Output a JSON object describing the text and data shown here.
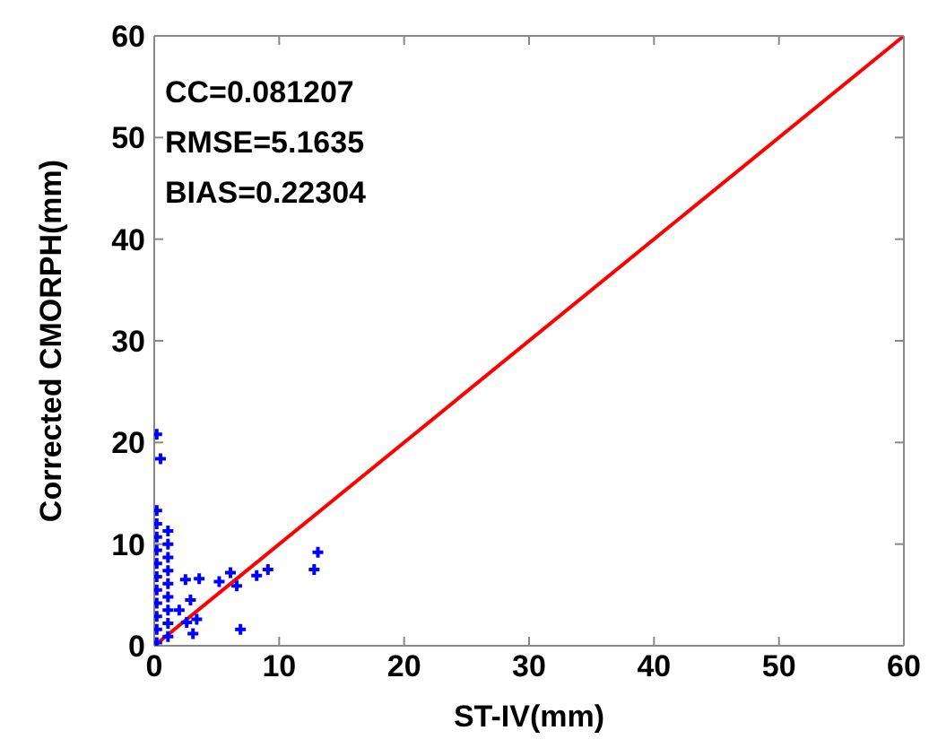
{
  "chart_data": {
    "type": "scatter",
    "xlabel": "ST-IV(mm)",
    "ylabel": "Corrected CMORPH(mm)",
    "annotations": [
      "CC=0.081207",
      "RMSE=5.1635",
      "BIAS=0.22304"
    ],
    "xlim": [
      0,
      60
    ],
    "ylim": [
      0,
      60
    ],
    "xticks": [
      0,
      10,
      20,
      30,
      40,
      50,
      60
    ],
    "yticks": [
      0,
      10,
      20,
      30,
      40,
      50,
      60
    ],
    "grid": false,
    "legend": false,
    "marker": "cross",
    "series": [
      {
        "type": "scatter",
        "color": "#0000ff",
        "x": [
          0.2,
          0.5,
          0.2,
          0.2,
          0.2,
          0.2,
          0.2,
          0.2,
          0.2,
          0.2,
          0.2,
          0.2,
          0.2,
          1.1,
          1.1,
          1.1,
          1.1,
          1.1,
          1.1,
          1.1,
          1.1,
          1.1,
          2.0,
          2.9,
          2.6,
          3.1,
          3.4,
          2.5,
          3.6,
          5.2,
          6.1,
          6.6,
          6.9,
          8.2,
          9.1,
          12.8,
          13.1
        ],
        "values": [
          20.8,
          18.4,
          0.3,
          1.6,
          2.9,
          4.2,
          5.5,
          6.8,
          8.1,
          9.4,
          10.7,
          12.0,
          13.3,
          0.9,
          2.2,
          3.5,
          4.8,
          6.1,
          7.4,
          8.7,
          10.0,
          11.3,
          3.5,
          4.5,
          2.3,
          1.2,
          2.6,
          6.5,
          6.6,
          6.3,
          7.2,
          5.9,
          1.6,
          6.9,
          7.5,
          7.5,
          9.2
        ]
      },
      {
        "type": "line",
        "color": "#ff0000",
        "marker": "none",
        "line_style": "solid",
        "x": [
          0,
          60
        ],
        "values": [
          0,
          60
        ]
      }
    ]
  }
}
